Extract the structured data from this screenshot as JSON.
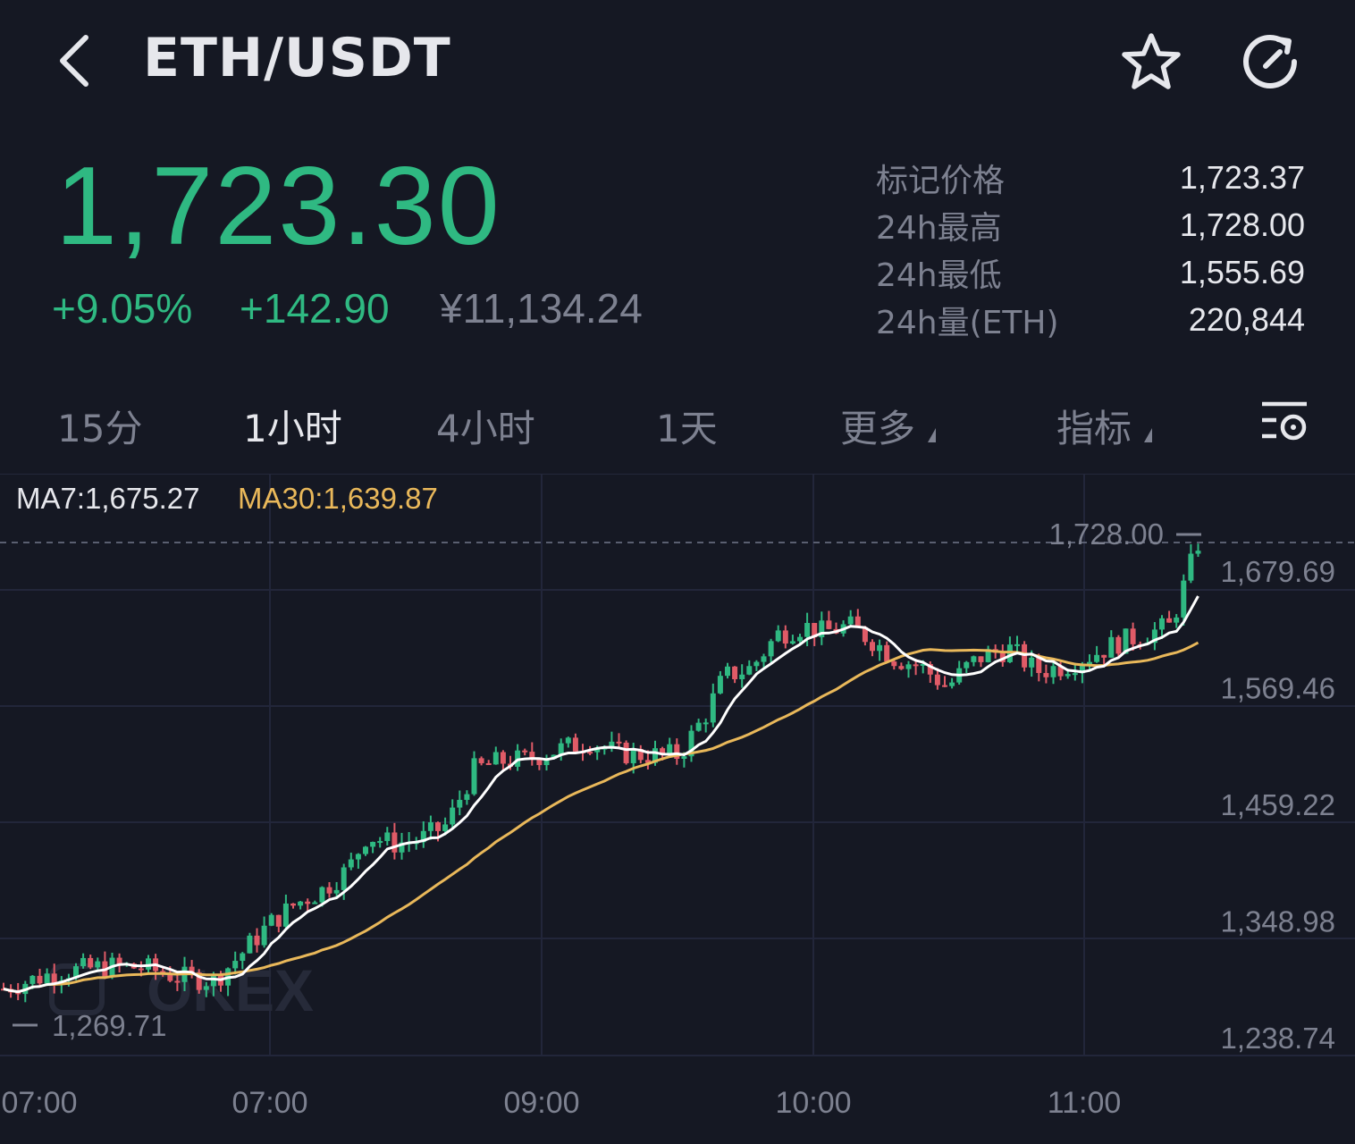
{
  "header": {
    "title": "ETH/USDT",
    "back_icon": "chevron-left-icon",
    "favorite_icon": "star-icon",
    "refresh_icon": "refresh-icon"
  },
  "ticker": {
    "last_price": "1,723.30",
    "change_pct": "+9.05%",
    "change_abs": "+142.90",
    "price_cny": "¥11,134.24"
  },
  "info": [
    {
      "label": "标记价格",
      "value": "1,723.37"
    },
    {
      "label": "24h最高",
      "value": "1,728.00"
    },
    {
      "label": "24h最低",
      "value": "1,555.69"
    },
    {
      "label": "24h量(ETH)",
      "value": "220,844"
    }
  ],
  "tabs": {
    "t15": "15分",
    "t1h": "1小时",
    "t4h": "4小时",
    "t1d": "1天",
    "more": "更多",
    "indicators": "指标"
  },
  "colors": {
    "up": "#2fb982",
    "down": "#e05b67",
    "ma7": "#ffffff",
    "ma30": "#e9b85a",
    "background": "#151823"
  },
  "chart_data": {
    "type": "candlestick",
    "ma7_label": "MA7:1,675.27",
    "ma30_label": "MA30:1,639.87",
    "y_ticks": [
      "1,679.69",
      "1,569.46",
      "1,459.22",
      "1,348.98",
      "1,238.74"
    ],
    "y_tick_values": [
      1679.69,
      1569.46,
      1459.22,
      1348.98,
      1238.74
    ],
    "x_ticks": [
      "07:00",
      "07:00",
      "09:00",
      "10:00",
      "11:00"
    ],
    "high_marker": "1,728.00",
    "low_marker": "1,269.71",
    "watermark": "OKEX",
    "ylim": [
      1216,
      1716
    ]
  }
}
